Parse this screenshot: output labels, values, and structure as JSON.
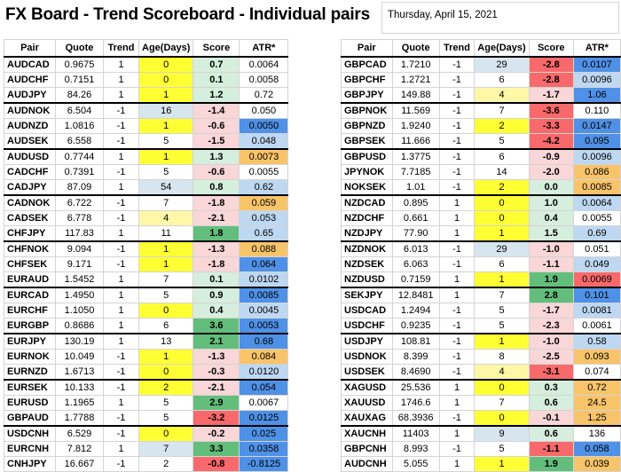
{
  "header": {
    "title": "FX Board - Trend Scoreboard - Individual pairs",
    "date": "Thursday, April 15, 2021"
  },
  "columns": [
    "Pair",
    "Quote",
    "Trend",
    "Age(Days)",
    "Score",
    "ATR*"
  ],
  "colors": {
    "age_yellow": "#ffff33",
    "age_blue": "#d7e5ee",
    "score_green_strong": "#63be7b",
    "score_green_light": "#d6eedd",
    "score_red_strong": "#f8696b",
    "score_red_light": "#f9d6d7",
    "atr_blue_strong": "#4f91e6",
    "atr_blue_light": "#bed8f2",
    "atr_orange": "#f8c46a"
  },
  "left_table": {
    "rows": [
      {
        "pair": "AUDCAD",
        "quote": "0.9675",
        "trend": "1",
        "age": "0",
        "score": "0.7",
        "atr": "0.0064",
        "age_c": "y",
        "score_c": "gl",
        "atr_c": "",
        "end": false
      },
      {
        "pair": "AUDCHF",
        "quote": "0.7151",
        "trend": "1",
        "age": "0",
        "score": "0.1",
        "atr": "0.0058",
        "age_c": "y",
        "score_c": "gl",
        "atr_c": "",
        "end": false
      },
      {
        "pair": "AUDJPY",
        "quote": "84.26",
        "trend": "1",
        "age": "1",
        "score": "1.2",
        "atr": "0.72",
        "age_c": "y",
        "score_c": "gl",
        "atr_c": "",
        "end": true
      },
      {
        "pair": "AUDNOK",
        "quote": "6.504",
        "trend": "-1",
        "age": "16",
        "score": "-1.4",
        "atr": "0.050",
        "age_c": "b",
        "score_c": "rl",
        "atr_c": "",
        "end": false
      },
      {
        "pair": "AUDNZD",
        "quote": "1.0816",
        "trend": "-1",
        "age": "1",
        "score": "-0.6",
        "atr": "0.0050",
        "age_c": "y",
        "score_c": "rl",
        "atr_c": "bs",
        "end": false
      },
      {
        "pair": "AUDSEK",
        "quote": "6.558",
        "trend": "-1",
        "age": "5",
        "score": "-1.5",
        "atr": "0.048",
        "age_c": "",
        "score_c": "rl",
        "atr_c": "bl",
        "end": true
      },
      {
        "pair": "AUDUSD",
        "quote": "0.7744",
        "trend": "1",
        "age": "1",
        "score": "1.3",
        "atr": "0.0073",
        "age_c": "y",
        "score_c": "gl",
        "atr_c": "o",
        "end": false
      },
      {
        "pair": "CADCHF",
        "quote": "0.7391",
        "trend": "-1",
        "age": "5",
        "score": "-0.6",
        "atr": "0.0055",
        "age_c": "",
        "score_c": "rl",
        "atr_c": "",
        "end": false
      },
      {
        "pair": "CADJPY",
        "quote": "87.09",
        "trend": "1",
        "age": "54",
        "score": "0.8",
        "atr": "0.62",
        "age_c": "b",
        "score_c": "gl",
        "atr_c": "bl",
        "end": true
      },
      {
        "pair": "CADNOK",
        "quote": "6.722",
        "trend": "-1",
        "age": "7",
        "score": "-1.8",
        "atr": "0.059",
        "age_c": "",
        "score_c": "rl",
        "atr_c": "o",
        "end": false
      },
      {
        "pair": "CADSEK",
        "quote": "6.778",
        "trend": "-1",
        "age": "4",
        "score": "-2.1",
        "atr": "0.053",
        "age_c": "ly",
        "score_c": "rl",
        "atr_c": "bl",
        "end": false
      },
      {
        "pair": "CHFJPY",
        "quote": "117.83",
        "trend": "1",
        "age": "11",
        "score": "1.8",
        "atr": "0.65",
        "age_c": "",
        "score_c": "gs",
        "atr_c": "bl",
        "end": true
      },
      {
        "pair": "CHFNOK",
        "quote": "9.094",
        "trend": "-1",
        "age": "1",
        "score": "-1.3",
        "atr": "0.088",
        "age_c": "y",
        "score_c": "rl",
        "atr_c": "o",
        "end": false
      },
      {
        "pair": "CHFSEK",
        "quote": "9.171",
        "trend": "-1",
        "age": "1",
        "score": "-1.8",
        "atr": "0.064",
        "age_c": "y",
        "score_c": "rl",
        "atr_c": "bs",
        "end": false
      },
      {
        "pair": "EURAUD",
        "quote": "1.5452",
        "trend": "1",
        "age": "7",
        "score": "0.1",
        "atr": "0.0102",
        "age_c": "",
        "score_c": "gl",
        "atr_c": "bl",
        "end": true
      },
      {
        "pair": "EURCAD",
        "quote": "1.4950",
        "trend": "1",
        "age": "5",
        "score": "0.9",
        "atr": "0.0085",
        "age_c": "",
        "score_c": "gl",
        "atr_c": "bs",
        "end": false
      },
      {
        "pair": "EURCHF",
        "quote": "1.1050",
        "trend": "1",
        "age": "0",
        "score": "0.4",
        "atr": "0.0045",
        "age_c": "y",
        "score_c": "gl",
        "atr_c": "bl",
        "end": false
      },
      {
        "pair": "EURGBP",
        "quote": "0.8686",
        "trend": "1",
        "age": "6",
        "score": "3.6",
        "atr": "0.0053",
        "age_c": "",
        "score_c": "gs",
        "atr_c": "bs",
        "end": true
      },
      {
        "pair": "EURJPY",
        "quote": "130.19",
        "trend": "1",
        "age": "13",
        "score": "2.1",
        "atr": "0.68",
        "age_c": "",
        "score_c": "gs",
        "atr_c": "bs",
        "end": false
      },
      {
        "pair": "EURNOK",
        "quote": "10.049",
        "trend": "-1",
        "age": "1",
        "score": "-1.3",
        "atr": "0.084",
        "age_c": "y",
        "score_c": "rl",
        "atr_c": "o",
        "end": false
      },
      {
        "pair": "EURNZD",
        "quote": "1.6713",
        "trend": "-1",
        "age": "0",
        "score": "-0.3",
        "atr": "0.0120",
        "age_c": "y",
        "score_c": "rl",
        "atr_c": "bl",
        "end": true
      },
      {
        "pair": "EURSEK",
        "quote": "10.133",
        "trend": "-1",
        "age": "2",
        "score": "-2.1",
        "atr": "0.054",
        "age_c": "y",
        "score_c": "rl",
        "atr_c": "bs",
        "end": false
      },
      {
        "pair": "EURUSD",
        "quote": "1.1965",
        "trend": "1",
        "age": "5",
        "score": "2.9",
        "atr": "0.0067",
        "age_c": "",
        "score_c": "gs",
        "atr_c": "",
        "end": false
      },
      {
        "pair": "GBPAUD",
        "quote": "1.7788",
        "trend": "-1",
        "age": "5",
        "score": "-3.2",
        "atr": "0.0125",
        "age_c": "",
        "score_c": "rs",
        "atr_c": "bs",
        "end": true
      },
      {
        "pair": "USDCNH",
        "quote": "6.529",
        "trend": "-1",
        "age": "0",
        "score": "-0.2",
        "atr": "0.025",
        "age_c": "y",
        "score_c": "rl",
        "atr_c": "bs",
        "end": false
      },
      {
        "pair": "EURCNH",
        "quote": "7.812",
        "trend": "1",
        "age": "7",
        "score": "3.3",
        "atr": "0.0358",
        "age_c": "b",
        "score_c": "gs",
        "atr_c": "bs",
        "end": false
      },
      {
        "pair": "CNHJPY",
        "quote": "16.667",
        "trend": "-1",
        "age": "2",
        "score": "-0.8",
        "atr": "-0.8125",
        "age_c": "",
        "score_c": "rs",
        "atr_c": "bs",
        "end": false
      }
    ]
  },
  "right_table": {
    "rows": [
      {
        "pair": "GBPCAD",
        "quote": "1.7210",
        "trend": "-1",
        "age": "29",
        "score": "-2.8",
        "atr": "0.0107",
        "age_c": "b",
        "score_c": "rs",
        "atr_c": "bs",
        "end": false
      },
      {
        "pair": "GBPCHF",
        "quote": "1.2721",
        "trend": "-1",
        "age": "6",
        "score": "-2.8",
        "atr": "0.0096",
        "age_c": "",
        "score_c": "rs",
        "atr_c": "bl",
        "end": false
      },
      {
        "pair": "GBPJPY",
        "quote": "149.88",
        "trend": "-1",
        "age": "4",
        "score": "-1.7",
        "atr": "1.06",
        "age_c": "ly",
        "score_c": "rl",
        "atr_c": "bs",
        "end": true
      },
      {
        "pair": "GBPNOK",
        "quote": "11.569",
        "trend": "-1",
        "age": "7",
        "score": "-3.6",
        "atr": "0.110",
        "age_c": "",
        "score_c": "rs",
        "atr_c": "",
        "end": false
      },
      {
        "pair": "GBPNZD",
        "quote": "1.9240",
        "trend": "-1",
        "age": "2",
        "score": "-3.3",
        "atr": "0.0147",
        "age_c": "y",
        "score_c": "rs",
        "atr_c": "bs",
        "end": false
      },
      {
        "pair": "GBPSEK",
        "quote": "11.666",
        "trend": "-1",
        "age": "5",
        "score": "-4.2",
        "atr": "0.095",
        "age_c": "",
        "score_c": "rs",
        "atr_c": "bs",
        "end": true
      },
      {
        "pair": "GBPUSD",
        "quote": "1.3775",
        "trend": "-1",
        "age": "6",
        "score": "-0.9",
        "atr": "0.0096",
        "age_c": "",
        "score_c": "rl",
        "atr_c": "bl",
        "end": false
      },
      {
        "pair": "JPYNOK",
        "quote": "7.7185",
        "trend": "-1",
        "age": "14",
        "score": "-2.0",
        "atr": "0.086",
        "age_c": "",
        "score_c": "rl",
        "atr_c": "o",
        "end": false
      },
      {
        "pair": "NOKSEK",
        "quote": "1.01",
        "trend": "-1",
        "age": "2",
        "score": "0.0",
        "atr": "0.0085",
        "age_c": "y",
        "score_c": "gl",
        "atr_c": "o",
        "end": true
      },
      {
        "pair": "NZDCAD",
        "quote": "0.895",
        "trend": "1",
        "age": "0",
        "score": "1.0",
        "atr": "0.0064",
        "age_c": "y",
        "score_c": "gl",
        "atr_c": "bl",
        "end": false
      },
      {
        "pair": "NZDCHF",
        "quote": "0.661",
        "trend": "1",
        "age": "0",
        "score": "0.4",
        "atr": "0.0055",
        "age_c": "y",
        "score_c": "gl",
        "atr_c": "",
        "end": false
      },
      {
        "pair": "NZDJPY",
        "quote": "77.90",
        "trend": "1",
        "age": "1",
        "score": "1.5",
        "atr": "0.69",
        "age_c": "y",
        "score_c": "gl",
        "atr_c": "bl",
        "end": true
      },
      {
        "pair": "NZDNOK",
        "quote": "6.013",
        "trend": "-1",
        "age": "29",
        "score": "-1.0",
        "atr": "0.051",
        "age_c": "b",
        "score_c": "rl",
        "atr_c": "",
        "end": false
      },
      {
        "pair": "NZDSEK",
        "quote": "6.063",
        "trend": "-1",
        "age": "6",
        "score": "-1.1",
        "atr": "0.049",
        "age_c": "",
        "score_c": "rl",
        "atr_c": "bl",
        "end": false
      },
      {
        "pair": "NZDUSD",
        "quote": "0.7159",
        "trend": "1",
        "age": "1",
        "score": "1.9",
        "atr": "0.0069",
        "age_c": "y",
        "score_c": "gs",
        "atr_c": "rs",
        "end": true
      },
      {
        "pair": "SEKJPY",
        "quote": "12.8481",
        "trend": "1",
        "age": "7",
        "score": "2.8",
        "atr": "0.101",
        "age_c": "",
        "score_c": "gs",
        "atr_c": "bs",
        "end": false
      },
      {
        "pair": "USDCAD",
        "quote": "1.2494",
        "trend": "-1",
        "age": "5",
        "score": "-1.7",
        "atr": "0.0081",
        "age_c": "",
        "score_c": "rl",
        "atr_c": "bl",
        "end": false
      },
      {
        "pair": "USDCHF",
        "quote": "0.9235",
        "trend": "-1",
        "age": "5",
        "score": "-2.3",
        "atr": "0.0061",
        "age_c": "",
        "score_c": "rl",
        "atr_c": "",
        "end": true
      },
      {
        "pair": "USDJPY",
        "quote": "108.81",
        "trend": "-1",
        "age": "1",
        "score": "-1.0",
        "atr": "0.58",
        "age_c": "y",
        "score_c": "rl",
        "atr_c": "bl",
        "end": false
      },
      {
        "pair": "USDNOK",
        "quote": "8.399",
        "trend": "-1",
        "age": "8",
        "score": "-2.5",
        "atr": "0.093",
        "age_c": "",
        "score_c": "rl",
        "atr_c": "o",
        "end": false
      },
      {
        "pair": "USDSEK",
        "quote": "8.4690",
        "trend": "-1",
        "age": "4",
        "score": "-3.1",
        "atr": "0.074",
        "age_c": "ly",
        "score_c": "rs",
        "atr_c": "",
        "end": true
      },
      {
        "pair": "XAGUSD",
        "quote": "25.536",
        "trend": "1",
        "age": "0",
        "score": "0.3",
        "atr": "0.72",
        "age_c": "y",
        "score_c": "gl",
        "atr_c": "o",
        "end": false
      },
      {
        "pair": "XAUUSD",
        "quote": "1746.6",
        "trend": "1",
        "age": "7",
        "score": "0.6",
        "atr": "24.5",
        "age_c": "",
        "score_c": "gl",
        "atr_c": "o",
        "end": false
      },
      {
        "pair": "XAUXAG",
        "quote": "68.3936",
        "trend": "-1",
        "age": "0",
        "score": "-0.1",
        "atr": "1.25",
        "age_c": "y",
        "score_c": "rl",
        "atr_c": "o",
        "end": true
      },
      {
        "pair": "XAUCNH",
        "quote": "11403",
        "trend": "1",
        "age": "9",
        "score": "0.6",
        "atr": "136",
        "age_c": "b",
        "score_c": "gl",
        "atr_c": "",
        "end": false
      },
      {
        "pair": "GBPCNH",
        "quote": "8.993",
        "trend": "-1",
        "age": "5",
        "score": "-1.1",
        "atr": "0.058",
        "age_c": "",
        "score_c": "rs",
        "atr_c": "bs",
        "end": false
      },
      {
        "pair": "AUDCNH",
        "quote": "5.055",
        "trend": "1",
        "age": "1",
        "score": "1.9",
        "atr": "0.039",
        "age_c": "y",
        "score_c": "gs",
        "atr_c": "o",
        "end": false
      }
    ]
  }
}
